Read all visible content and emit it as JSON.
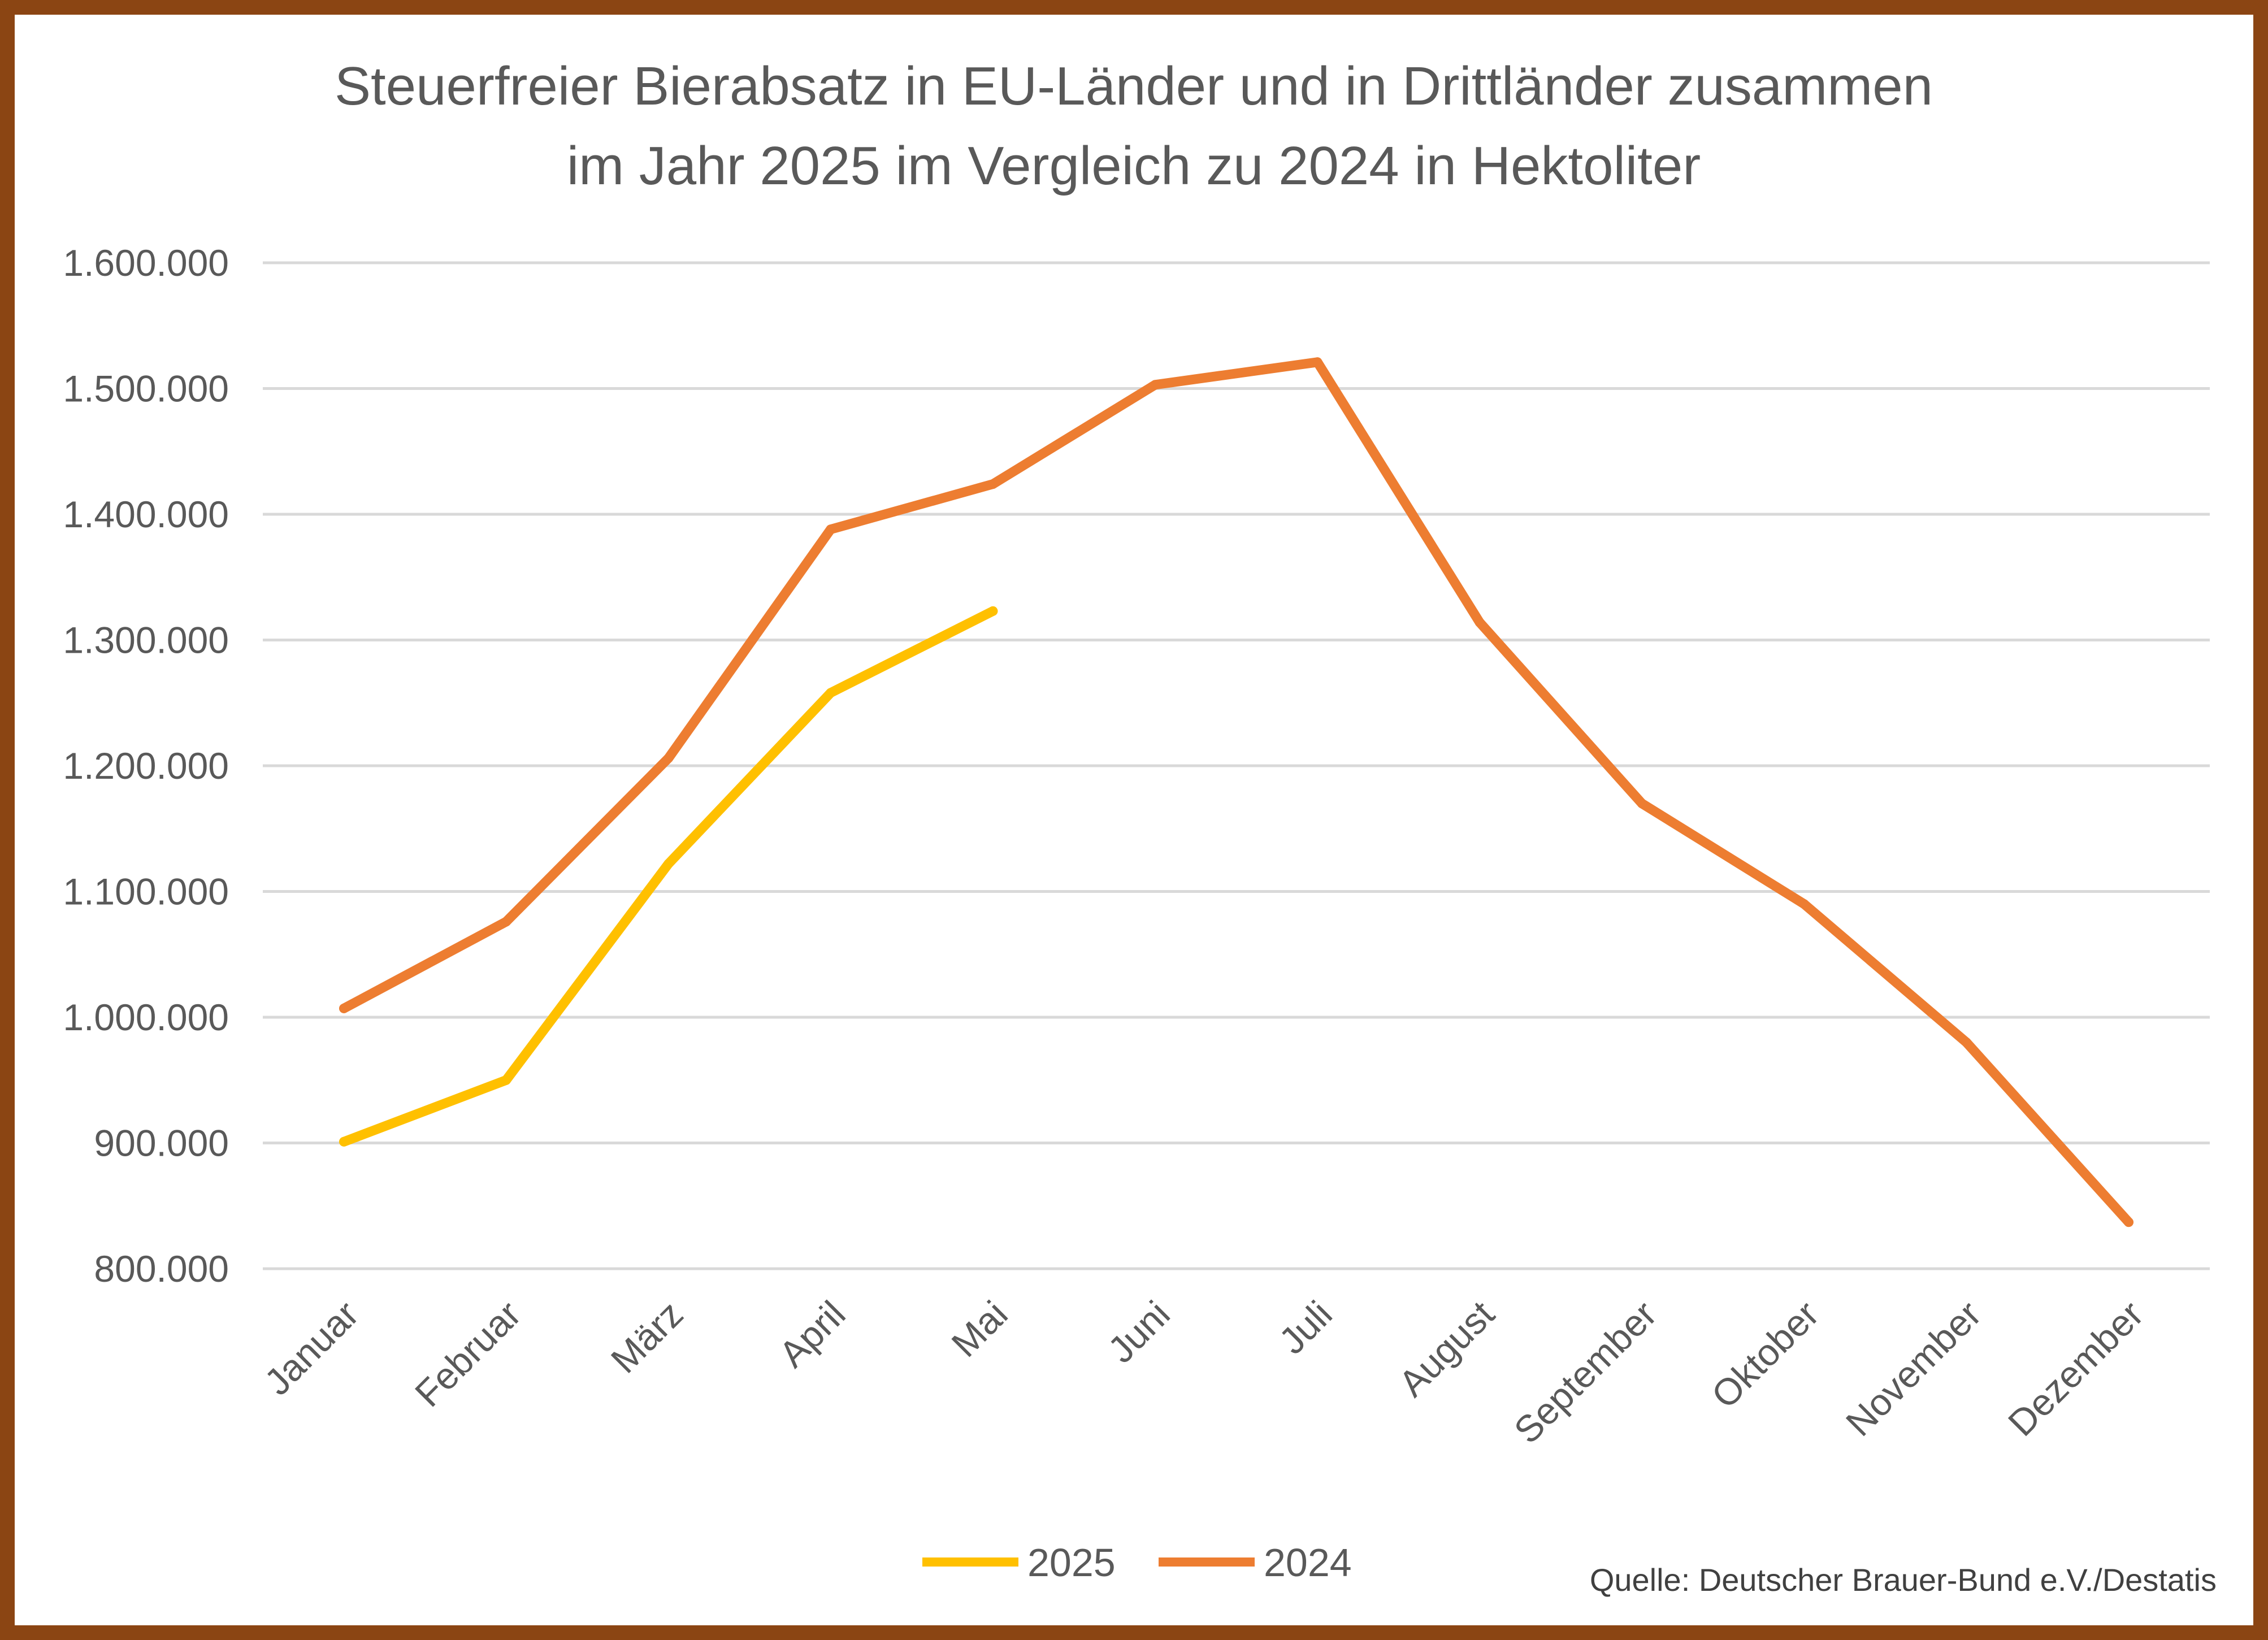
{
  "chart_data": {
    "type": "line",
    "title_lines": [
      "Steuerfreier Bierabsatz in EU-Länder und in Drittländer zusammen",
      "im Jahr 2025 im Vergleich zu 2024 in Hektoliter"
    ],
    "xlabel": "",
    "ylabel": "",
    "categories": [
      "Januar",
      "Februar",
      "März",
      "April",
      "Mai",
      "Juni",
      "Juli",
      "August",
      "September",
      "Oktober",
      "November",
      "Dezember"
    ],
    "y_ticks": [
      800000,
      900000,
      1000000,
      1100000,
      1200000,
      1300000,
      1400000,
      1500000,
      1600000
    ],
    "y_tick_labels": [
      "800.000",
      "900.000",
      "1.000.000",
      "1.100.000",
      "1.200.000",
      "1.300.000",
      "1.400.000",
      "1.500.000",
      "1.600.000"
    ],
    "ylim": [
      800000,
      1600000
    ],
    "grid": true,
    "legend_position": "bottom",
    "series": [
      {
        "name": "2025",
        "color": "#FFC000",
        "values": [
          901000,
          950000,
          1122000,
          1258000,
          1323000,
          null,
          null,
          null,
          null,
          null,
          null,
          null
        ]
      },
      {
        "name": "2024",
        "color": "#ED7D31",
        "values": [
          1007000,
          1076000,
          1206000,
          1388000,
          1424000,
          1503000,
          1521000,
          1314000,
          1170000,
          1090000,
          980000,
          837000
        ]
      }
    ],
    "source": "Quelle: Deutscher Brauer-Bund e.V./Destatis"
  },
  "colors": {
    "frame": "#8B4513",
    "grid": "#D9D9D9",
    "text": "#595959"
  }
}
